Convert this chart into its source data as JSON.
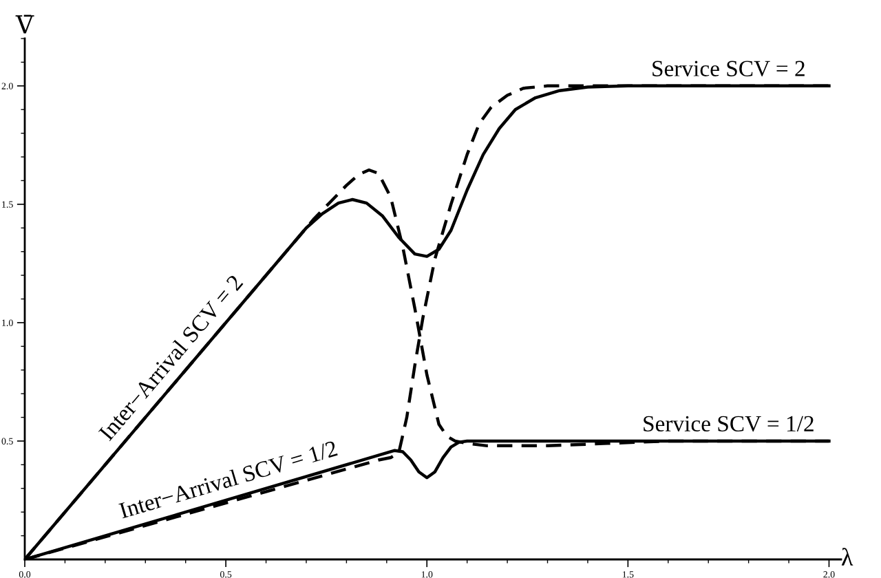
{
  "chart_data": {
    "type": "line",
    "xlabel": "λ",
    "ylabel": "V̄",
    "xlim": [
      0,
      2.03
    ],
    "ylim": [
      0,
      2.2
    ],
    "grid": false,
    "legend": false,
    "marker": "none",
    "xticks": [
      {
        "value": 0,
        "label": "0.0"
      },
      {
        "value": 0.1,
        "label": null
      },
      {
        "value": 0.2,
        "label": null
      },
      {
        "value": 0.3,
        "label": null
      },
      {
        "value": 0.4,
        "label": null
      },
      {
        "value": 0.5,
        "label": "0.5"
      },
      {
        "value": 0.6,
        "label": null
      },
      {
        "value": 0.7,
        "label": null
      },
      {
        "value": 0.8,
        "label": null
      },
      {
        "value": 0.9,
        "label": null
      },
      {
        "value": 1.0,
        "label": "1.0"
      },
      {
        "value": 1.1,
        "label": null
      },
      {
        "value": 1.2,
        "label": null
      },
      {
        "value": 1.3,
        "label": null
      },
      {
        "value": 1.4,
        "label": null
      },
      {
        "value": 1.5,
        "label": "1.5"
      },
      {
        "value": 1.6,
        "label": null
      },
      {
        "value": 1.7,
        "label": null
      },
      {
        "value": 1.8,
        "label": null
      },
      {
        "value": 1.9,
        "label": null
      },
      {
        "value": 2.0,
        "label": "2.0"
      }
    ],
    "yticks": [
      {
        "value": 0.1,
        "label": null
      },
      {
        "value": 0.2,
        "label": null
      },
      {
        "value": 0.3,
        "label": null
      },
      {
        "value": 0.4,
        "label": null
      },
      {
        "value": 0.5,
        "label": "0.5"
      },
      {
        "value": 0.6,
        "label": null
      },
      {
        "value": 0.7,
        "label": null
      },
      {
        "value": 0.8,
        "label": null
      },
      {
        "value": 0.9,
        "label": null
      },
      {
        "value": 1.0,
        "label": "1.0"
      },
      {
        "value": 1.1,
        "label": null
      },
      {
        "value": 1.2,
        "label": null
      },
      {
        "value": 1.3,
        "label": null
      },
      {
        "value": 1.4,
        "label": null
      },
      {
        "value": 1.5,
        "label": "1.5"
      },
      {
        "value": 1.6,
        "label": null
      },
      {
        "value": 1.7,
        "label": null
      },
      {
        "value": 1.8,
        "label": null
      },
      {
        "value": 1.9,
        "label": null
      },
      {
        "value": 2.0,
        "label": "2.0"
      },
      {
        "value": 2.1,
        "label": null
      },
      {
        "value": 2.2,
        "label": null
      }
    ],
    "series": [
      {
        "color": "#000000",
        "line_style": "solid",
        "x": [
          0,
          0.7,
          0.74,
          0.78,
          0.815,
          0.85,
          0.89,
          0.93,
          0.97,
          1.0,
          1.03,
          1.06,
          1.1,
          1.14,
          1.18,
          1.22,
          1.27,
          1.33,
          1.4,
          1.5,
          2.0
        ],
        "values": [
          0,
          1.4,
          1.46,
          1.505,
          1.52,
          1.505,
          1.45,
          1.36,
          1.29,
          1.28,
          1.31,
          1.39,
          1.56,
          1.71,
          1.82,
          1.9,
          1.95,
          1.98,
          1.995,
          2.0,
          2.0
        ]
      },
      {
        "color": "#000000",
        "line_style": "dashed",
        "x": [
          0,
          0.72,
          0.76,
          0.8,
          0.83,
          0.856,
          0.88,
          0.91,
          0.94,
          0.97,
          1.0,
          1.03,
          1.05,
          1.07,
          1.1,
          1.15,
          1.3,
          1.45,
          1.6,
          2.0
        ],
        "values": [
          0,
          1.44,
          1.51,
          1.58,
          1.625,
          1.645,
          1.63,
          1.53,
          1.32,
          1.06,
          0.78,
          0.57,
          0.52,
          0.5,
          0.49,
          0.48,
          0.48,
          0.49,
          0.5,
          0.5
        ]
      },
      {
        "color": "#000000",
        "line_style": "dashed",
        "x": [
          0,
          0.88,
          0.91,
          0.93,
          0.95,
          0.97,
          0.99,
          1.02,
          1.06,
          1.1,
          1.13,
          1.16,
          1.2,
          1.24,
          1.3,
          2.0
        ],
        "values": [
          0,
          0.42,
          0.43,
          0.45,
          0.6,
          0.82,
          1.02,
          1.27,
          1.5,
          1.71,
          1.84,
          1.91,
          1.96,
          1.99,
          2.0,
          2.0
        ]
      },
      {
        "color": "#000000",
        "line_style": "solid",
        "x": [
          0,
          0.92,
          0.94,
          0.96,
          0.98,
          1.0,
          1.02,
          1.04,
          1.06,
          1.08,
          1.1,
          2.0
        ],
        "values": [
          0,
          0.46,
          0.455,
          0.42,
          0.37,
          0.345,
          0.37,
          0.43,
          0.475,
          0.495,
          0.5,
          0.5
        ]
      }
    ],
    "annotations": [
      "Inter−Arrival SCV = 2",
      "Inter−Arrival SCV = 1/2",
      "Service SCV = 2",
      "Service SCV = 1/2"
    ]
  }
}
